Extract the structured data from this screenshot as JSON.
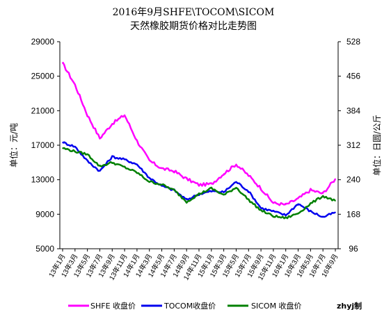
{
  "chart_data": {
    "type": "line",
    "title": "2016年9月SHFE\\TOCOM\\SICOM",
    "subtitle": "天然橡胶期货价格对比走势图",
    "ylabel_left": "单位：元/吨",
    "ylabel_right": "单位：日圆/公斤",
    "y_left": {
      "ticks": [
        "29000",
        "25000",
        "21000",
        "17000",
        "13000",
        "9000",
        "5000"
      ],
      "ylim": [
        5000,
        29000
      ]
    },
    "y_right": {
      "ticks": [
        "528",
        "456",
        "384",
        "312",
        "240",
        "168",
        "96"
      ],
      "ylim": [
        96,
        528
      ]
    },
    "grid": false,
    "legend_position": "bottom",
    "x_categories": [
      "13年1月",
      "13年3月",
      "13年5月",
      "13年7月",
      "13年9月",
      "13年11月",
      "14年1月",
      "14年3月",
      "14年5月",
      "14年7月",
      "14年9月",
      "14年11月",
      "15年1月",
      "15年3月",
      "15年5月",
      "15年7月",
      "15年9月",
      "15年11月",
      "16年1月",
      "16年3月",
      "16年5月",
      "16年7月",
      "16年9月"
    ],
    "series": [
      {
        "name": "SHFE 收盘价",
        "axis": "left",
        "color": "#ff00ff",
        "values": [
          26500,
          24000,
          20500,
          17800,
          19500,
          20500,
          17500,
          15200,
          14300,
          14000,
          13100,
          12400,
          12500,
          13700,
          14800,
          13500,
          12000,
          10300,
          10100,
          10800,
          11800,
          11400,
          13100
        ]
      },
      {
        "name": "TOCOM收盘价",
        "axis": "right",
        "color": "#0000ee",
        "values": [
          318,
          309,
          279,
          258,
          288,
          282,
          272,
          244,
          227,
          218,
          198,
          210,
          216,
          214,
          236,
          216,
          181,
          174,
          166,
          190,
          174,
          162,
          172
        ]
      },
      {
        "name": "SICOM 收盘价",
        "axis": "right",
        "color": "#008000",
        "values": [
          306,
          299,
          293,
          268,
          276,
          266,
          255,
          236,
          230,
          218,
          194,
          210,
          222,
          208,
          224,
          198,
          176,
          164,
          160,
          170,
          190,
          206,
          196
        ]
      }
    ],
    "credit": "zhyj制"
  }
}
